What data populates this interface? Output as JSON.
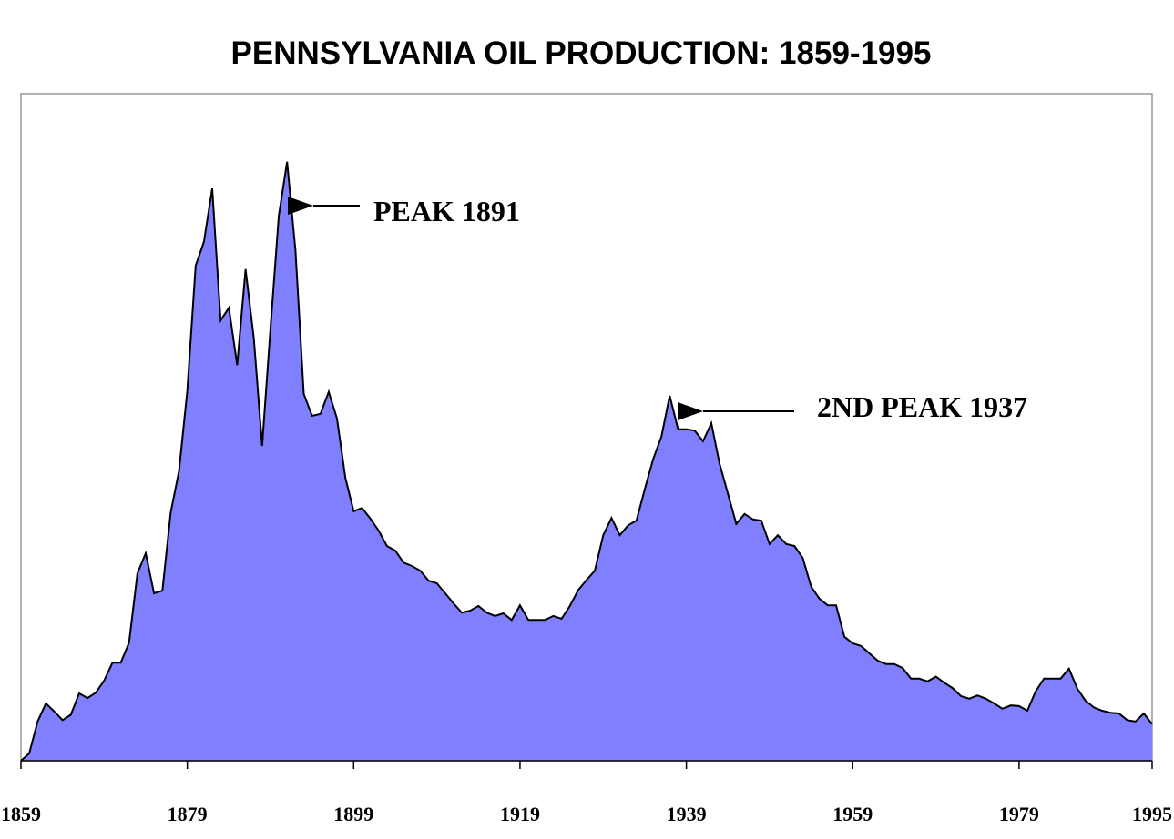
{
  "chart_data": {
    "type": "area",
    "title": "PENNSYLVANIA OIL PRODUCTION: 1859-1995",
    "x": [
      1859,
      1860,
      1861,
      1862,
      1863,
      1864,
      1865,
      1866,
      1867,
      1868,
      1869,
      1870,
      1871,
      1872,
      1873,
      1874,
      1875,
      1876,
      1877,
      1878,
      1879,
      1880,
      1881,
      1882,
      1883,
      1884,
      1885,
      1886,
      1887,
      1888,
      1889,
      1890,
      1891,
      1892,
      1893,
      1894,
      1895,
      1896,
      1897,
      1898,
      1899,
      1900,
      1901,
      1902,
      1903,
      1904,
      1905,
      1906,
      1907,
      1908,
      1909,
      1910,
      1911,
      1912,
      1913,
      1914,
      1915,
      1916,
      1917,
      1918,
      1919,
      1920,
      1921,
      1922,
      1923,
      1924,
      1925,
      1926,
      1927,
      1928,
      1929,
      1930,
      1931,
      1932,
      1933,
      1934,
      1935,
      1936,
      1937,
      1938,
      1939,
      1940,
      1941,
      1942,
      1943,
      1944,
      1945,
      1946,
      1947,
      1948,
      1949,
      1950,
      1951,
      1952,
      1953,
      1954,
      1955,
      1956,
      1957,
      1958,
      1959,
      1960,
      1961,
      1962,
      1963,
      1964,
      1965,
      1966,
      1967,
      1968,
      1969,
      1970,
      1971,
      1972,
      1973,
      1974,
      1975,
      1976,
      1977,
      1978,
      1979,
      1980,
      1981,
      1982,
      1983,
      1984,
      1985,
      1986,
      1987,
      1988,
      1989,
      1990,
      1991,
      1992,
      1993,
      1994,
      1995
    ],
    "values": [
      0,
      1.1,
      5.9,
      8.6,
      7.4,
      6.1,
      6.9,
      10.1,
      9.4,
      10.2,
      12.0,
      14.7,
      14.7,
      17.7,
      28.1,
      31.1,
      25.1,
      25.5,
      37.2,
      43.4,
      55.4,
      74.2,
      77.8,
      85.8,
      66.0,
      67.9,
      59.3,
      73.7,
      63.3,
      47.2,
      64.9,
      81.7,
      89.8,
      76.5,
      55.0,
      51.7,
      52.0,
      55.3,
      51.3,
      42.4,
      37.4,
      37.9,
      36.3,
      34.5,
      32.2,
      31.5,
      29.7,
      29.2,
      28.5,
      27.0,
      26.6,
      25.1,
      23.6,
      22.2,
      22.5,
      23.2,
      22.2,
      21.7,
      22.1,
      21.1,
      23.3,
      21.1,
      21.1,
      21.1,
      21.7,
      21.3,
      23.2,
      25.6,
      27.1,
      28.5,
      33.8,
      36.4,
      33.8,
      35.3,
      36.0,
      40.7,
      45.2,
      48.6,
      54.7,
      49.7,
      49.7,
      49.5,
      47.9,
      50.6,
      44.5,
      40.0,
      35.5,
      37.0,
      36.2,
      36.0,
      32.5,
      33.8,
      32.5,
      32.2,
      30.4,
      26.1,
      24.3,
      23.3,
      23.3,
      18.6,
      17.6,
      17.2,
      16.1,
      15.0,
      14.5,
      14.5,
      13.9,
      12.3,
      12.3,
      11.9,
      12.6,
      11.7,
      10.9,
      9.7,
      9.3,
      9.8,
      9.3,
      8.6,
      7.8,
      8.3,
      8.2,
      7.5,
      10.4,
      12.3,
      12.3,
      12.3,
      13.8,
      10.8,
      9.0,
      8.0,
      7.5,
      7.2,
      7.1,
      6.1,
      5.9,
      7.1,
      5.5
    ],
    "color": "#8080ff",
    "xlim": [
      1859,
      1995
    ],
    "ylim": [
      0,
      100
    ],
    "xticks": [
      1859,
      1879,
      1899,
      1919,
      1939,
      1959,
      1979,
      1995
    ],
    "annotations": [
      "PEAK 1891",
      "2ND PEAK 1937"
    ]
  }
}
